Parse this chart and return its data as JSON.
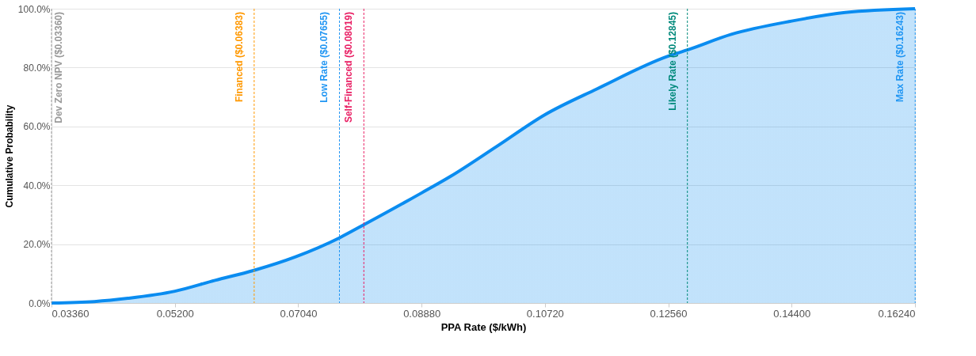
{
  "chart_data": {
    "type": "area",
    "xlabel": "PPA Rate ($/kWh)",
    "ylabel": "Cumulative Probability",
    "x": [
      0.0336,
      0.04,
      0.045,
      0.052,
      0.058,
      0.0638,
      0.07,
      0.0766,
      0.0802,
      0.0888,
      0.0931,
      0.1,
      0.1072,
      0.115,
      0.1256,
      0.12845,
      0.135,
      0.144,
      0.152,
      0.1624
    ],
    "series": [
      {
        "color": "#0a8cf0",
        "values": [
          0,
          0.5,
          1.6,
          4,
          7.7,
          11.1,
          15.7,
          22.2,
          26.6,
          37.4,
          43,
          53.2,
          64,
          72.8,
          83.9,
          86,
          91.3,
          95.8,
          98.7,
          100
        ]
      }
    ],
    "xlim": [
      0.0336,
      0.1624
    ],
    "xticks": [
      {
        "value": 0.0336,
        "label": "0.03360"
      },
      {
        "value": 0.052,
        "label": "0.05200"
      },
      {
        "value": 0.0704,
        "label": "0.07040"
      },
      {
        "value": 0.0888,
        "label": "0.08880"
      },
      {
        "value": 0.1072,
        "label": "0.10720"
      },
      {
        "value": 0.1256,
        "label": "0.12560"
      },
      {
        "value": 0.144,
        "label": "0.14400"
      },
      {
        "value": 0.1624,
        "label": "0.16240"
      }
    ],
    "ylim": [
      0,
      100
    ],
    "yticks": [
      {
        "value": 0,
        "label": "0.0%"
      },
      {
        "value": 20,
        "label": "20.0%"
      },
      {
        "value": 40,
        "label": "40.0%"
      },
      {
        "value": 60,
        "label": "60.0%"
      },
      {
        "value": 80,
        "label": "80.0%"
      },
      {
        "value": 100,
        "label": "100.0%"
      }
    ],
    "grid": "y",
    "ref_lines": [
      {
        "axis": "x",
        "value": 0.0336,
        "label": "Dev Zero NPV ($0.03360)",
        "color": "#999999",
        "line_style": "dashed"
      },
      {
        "axis": "x",
        "value": 0.06383,
        "label": "Financed ($0.06383)",
        "color": "#ff9800",
        "line_style": "dashed"
      },
      {
        "axis": "x",
        "value": 0.07655,
        "label": "Low Rate ($0.07655)",
        "color": "#2196f3",
        "line_style": "dashed"
      },
      {
        "axis": "x",
        "value": 0.08019,
        "label": "Self-Financed ($0.08019)",
        "color": "#e91e63",
        "line_style": "dashed"
      },
      {
        "axis": "x",
        "value": 0.12845,
        "label": "Likely Rate ($0.12845)",
        "color": "#00897b",
        "line_style": "dashed"
      },
      {
        "axis": "x",
        "value": 0.16243,
        "label": "Max Rate ($0.16243)",
        "color": "#2196f3",
        "line_style": "dashed"
      }
    ]
  }
}
